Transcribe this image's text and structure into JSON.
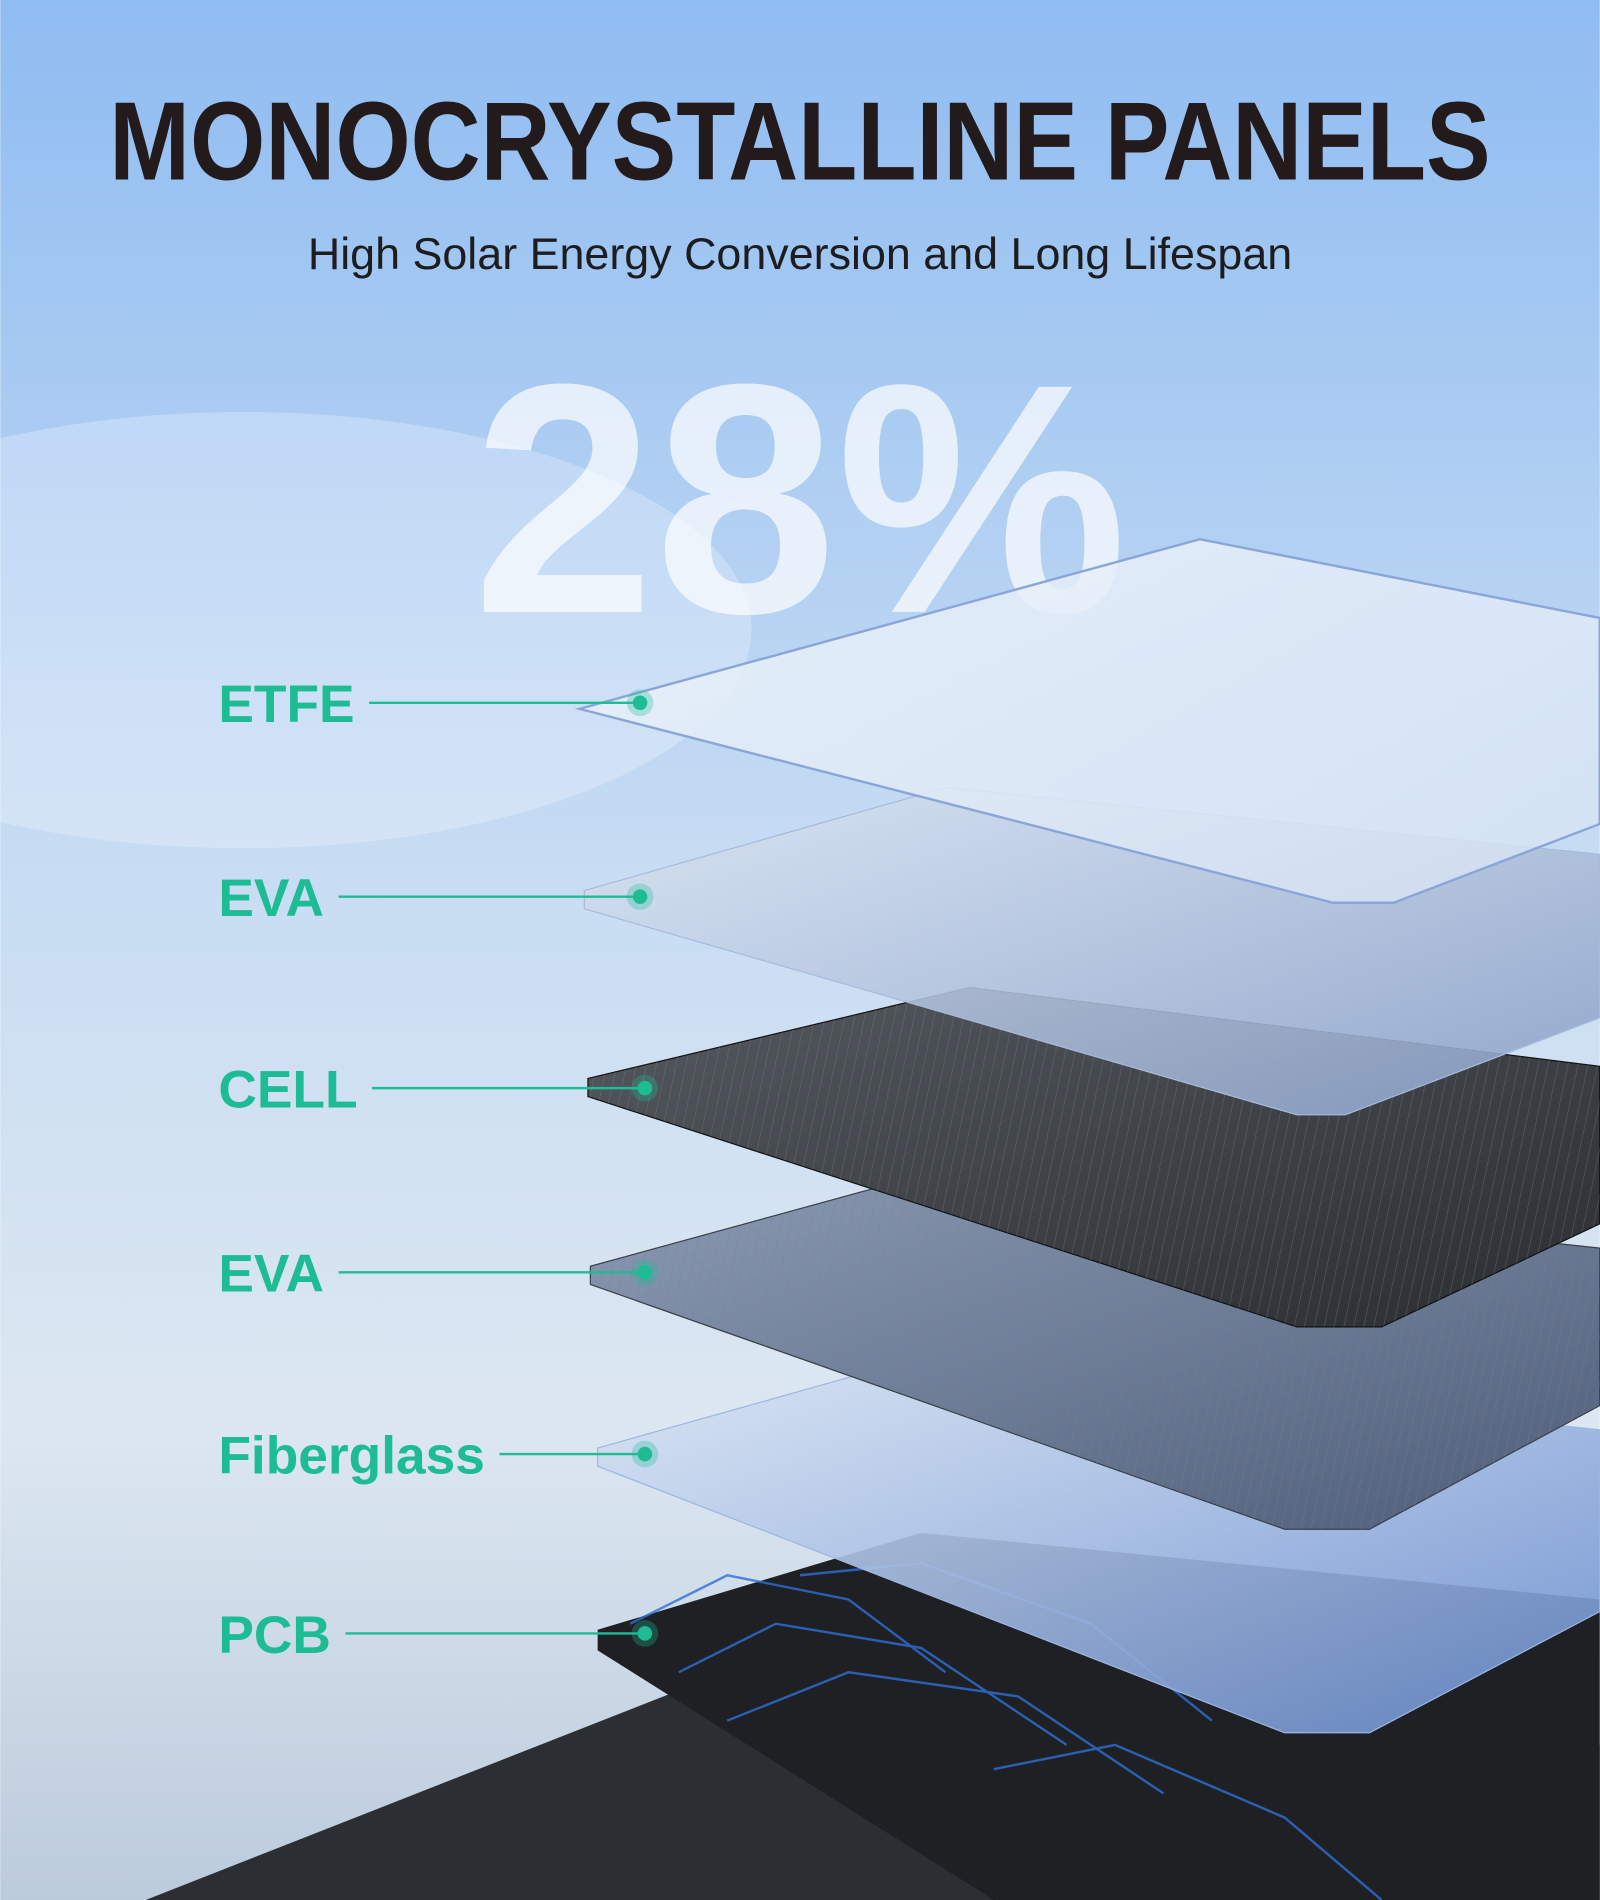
{
  "header": {
    "title": "MONOCRYSTALLINE PANELS",
    "subtitle": "High Solar Energy Conversion and Long Lifespan"
  },
  "highlight": "28%",
  "layers": [
    {
      "label": "ETFE"
    },
    {
      "label": "EVA"
    },
    {
      "label": "CELL"
    },
    {
      "label": "EVA"
    },
    {
      "label": "Fiberglass"
    },
    {
      "label": "PCB"
    }
  ]
}
